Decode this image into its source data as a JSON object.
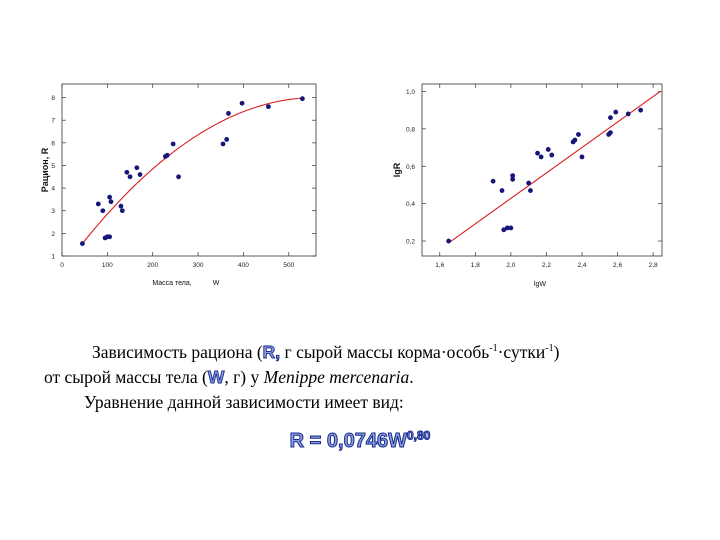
{
  "chart_data": [
    {
      "type": "scatter",
      "xlabel": "Масса тела,",
      "xlabel_unit": "W",
      "ylabel": "Рацион, R",
      "xlim": [
        0,
        560
      ],
      "ylim": [
        1,
        8.6
      ],
      "x_ticks": [
        "0",
        "100",
        "200",
        "300",
        "400",
        "500"
      ],
      "y_ticks": [
        "1",
        "2",
        "3",
        "4",
        "5",
        "6",
        "7",
        "8"
      ],
      "x_tick_values": [
        0,
        100,
        200,
        300,
        400,
        500
      ],
      "y_tick_values": [
        1,
        2,
        3,
        4,
        5,
        6,
        7,
        8
      ],
      "points": [
        [
          45,
          1.55
        ],
        [
          80,
          3.3
        ],
        [
          90,
          3.0
        ],
        [
          95,
          1.8
        ],
        [
          100,
          1.85
        ],
        [
          105,
          1.85
        ],
        [
          105,
          3.6
        ],
        [
          108,
          3.4
        ],
        [
          130,
          3.2
        ],
        [
          133,
          3.0
        ],
        [
          143,
          4.7
        ],
        [
          150,
          4.5
        ],
        [
          165,
          4.9
        ],
        [
          172,
          4.6
        ],
        [
          228,
          5.4
        ],
        [
          232,
          5.45
        ],
        [
          245,
          5.95
        ],
        [
          257,
          4.5
        ],
        [
          355,
          5.95
        ],
        [
          363,
          6.15
        ],
        [
          367,
          7.3
        ],
        [
          397,
          7.75
        ],
        [
          455,
          7.6
        ],
        [
          530,
          7.95
        ]
      ],
      "fit": {
        "coef": 0.0746,
        "exp": 0.8,
        "peak_x": 560,
        "peak_y": 8.0,
        "x_from": 45,
        "x_to": 530
      },
      "colors": {
        "points": "#15157a",
        "fit": "#d82020",
        "axis": "#333333"
      }
    },
    {
      "type": "scatter",
      "xlabel": "lgW",
      "ylabel": "lgR",
      "xlim": [
        1.5,
        2.85
      ],
      "ylim": [
        0.12,
        1.04
      ],
      "x_ticks": [
        "1,6",
        "1,8",
        "2,0",
        "2,2",
        "2,4",
        "2,6",
        "2,8"
      ],
      "y_ticks": [
        "0,2",
        "0,4",
        "0,6",
        "0,8",
        "1,0"
      ],
      "x_tick_values": [
        1.6,
        1.8,
        2.0,
        2.2,
        2.4,
        2.6,
        2.8
      ],
      "y_tick_values": [
        0.2,
        0.4,
        0.6,
        0.8,
        1.0
      ],
      "points": [
        [
          1.65,
          0.2
        ],
        [
          1.9,
          0.52
        ],
        [
          1.95,
          0.47
        ],
        [
          1.96,
          0.26
        ],
        [
          1.98,
          0.27
        ],
        [
          2.0,
          0.27
        ],
        [
          2.01,
          0.55
        ],
        [
          2.01,
          0.53
        ],
        [
          2.1,
          0.51
        ],
        [
          2.11,
          0.47
        ],
        [
          2.15,
          0.67
        ],
        [
          2.17,
          0.65
        ],
        [
          2.21,
          0.69
        ],
        [
          2.23,
          0.66
        ],
        [
          2.35,
          0.73
        ],
        [
          2.36,
          0.74
        ],
        [
          2.38,
          0.77
        ],
        [
          2.4,
          0.65
        ],
        [
          2.55,
          0.77
        ],
        [
          2.56,
          0.78
        ],
        [
          2.56,
          0.86
        ],
        [
          2.59,
          0.89
        ],
        [
          2.66,
          0.88
        ],
        [
          2.73,
          0.9
        ]
      ],
      "fit": {
        "from": [
          1.65,
          0.19
        ],
        "to": [
          2.84,
          1.0
        ]
      },
      "colors": {
        "points": "#15157a",
        "fit": "#d82020",
        "axis": "#333333"
      }
    }
  ],
  "caption": {
    "line1_start": "Зависимость рациона (",
    "symbol_R": "R,",
    "line1_mid": " г сырой массы корма·особь",
    "sup1": "-1",
    "line1_mid2": "·сутки",
    "sup2": "-1",
    "line1_end": ")",
    "line2_start": "от сырой  массы тела  (",
    "symbol_W": "W",
    "line2_mid": ", г) у ",
    "species": "Menippe mercenaria",
    "line2_end": ".",
    "line3": "Уравнение данной зависимости имеет вид:"
  },
  "equation": {
    "base": "R = 0,0746W",
    "exponent": "0,80"
  }
}
